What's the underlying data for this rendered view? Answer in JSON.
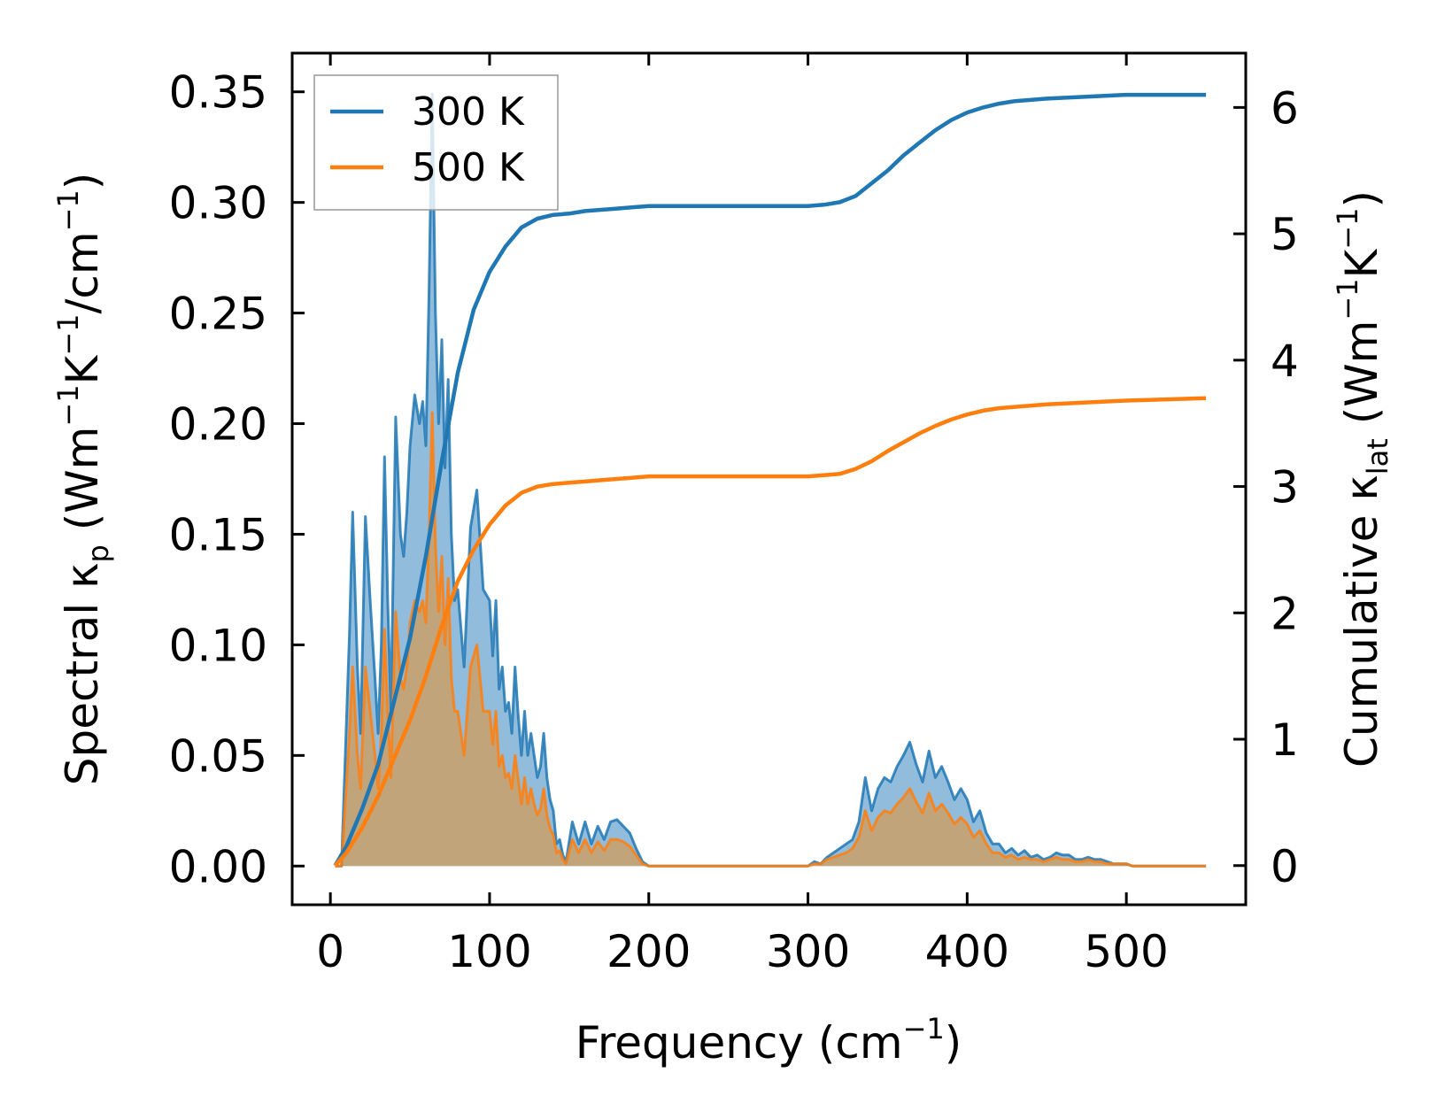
{
  "chart_data": {
    "type": "line",
    "xlabel": {
      "base": "Frequency (cm",
      "sup": "−1",
      "tail": ")"
    },
    "ylabel_left": {
      "text": "Spectral κ",
      "sub": "p",
      "unit_open": " (Wm",
      "sup1": "−1",
      "mid": "K",
      "sup2": "−1",
      "slash": "/cm",
      "sup3": "−1",
      "close": ")"
    },
    "ylabel_right": {
      "text": "Cumulative κ",
      "sub": "lat",
      "unit_open": " (Wm",
      "sup1": "−1",
      "mid": "K",
      "sup2": "−1",
      "close": ")"
    },
    "xlim": [
      -24,
      575
    ],
    "ylim_left": [
      -0.0175,
      0.3675
    ],
    "ylim_right": [
      -0.31,
      6.43
    ],
    "x_ticks": [
      0,
      100,
      200,
      300,
      400,
      500
    ],
    "x_tick_labels": [
      "0",
      "100",
      "200",
      "300",
      "400",
      "500"
    ],
    "y_left_ticks": [
      0.0,
      0.05,
      0.1,
      0.15,
      0.2,
      0.25,
      0.3,
      0.35
    ],
    "y_left_tick_labels": [
      "0.00",
      "0.05",
      "0.10",
      "0.15",
      "0.20",
      "0.25",
      "0.30",
      "0.35"
    ],
    "y_right_ticks": [
      0,
      1,
      2,
      3,
      4,
      5,
      6
    ],
    "y_right_tick_labels": [
      "0",
      "1",
      "2",
      "3",
      "4",
      "5",
      "6"
    ],
    "legend": {
      "position": "top-left",
      "entries": [
        "300 K",
        "500 K"
      ]
    },
    "colors": {
      "300 K": "#1f77b4",
      "500 K": "#ff7f0e",
      "fill_300": "#7fb0d6",
      "fill_500": "#caa06a",
      "axes": "#000000"
    },
    "spectral": {
      "axis": "left",
      "x": [
        3,
        7,
        12,
        14,
        17,
        19,
        22,
        25,
        28,
        30,
        32,
        34,
        36,
        38,
        41,
        44,
        46,
        48,
        50,
        53,
        56,
        58,
        60,
        62,
        64,
        66,
        68,
        70,
        72,
        74,
        76,
        78,
        80,
        84,
        88,
        92,
        96,
        100,
        102,
        104,
        106,
        108,
        110,
        112,
        114,
        116,
        118,
        120,
        122,
        124,
        126,
        128,
        130,
        132,
        134,
        136,
        138,
        140,
        142,
        144,
        146,
        148,
        152,
        156,
        160,
        164,
        168,
        172,
        176,
        180,
        184,
        188,
        192,
        196,
        200,
        300,
        304,
        308,
        312,
        316,
        320,
        324,
        328,
        332,
        336,
        340,
        344,
        348,
        352,
        356,
        360,
        364,
        368,
        372,
        376,
        380,
        384,
        388,
        392,
        396,
        400,
        404,
        408,
        412,
        416,
        420,
        424,
        428,
        432,
        436,
        440,
        444,
        448,
        452,
        456,
        460,
        464,
        468,
        472,
        476,
        480,
        484,
        488,
        492,
        496,
        500,
        504,
        508,
        512,
        516,
        520,
        550
      ],
      "series": [
        {
          "name": "300 K",
          "values": [
            0,
            0,
            0.105,
            0.16,
            0.09,
            0.06,
            0.158,
            0.12,
            0.085,
            0.06,
            0.1,
            0.185,
            0.12,
            0.07,
            0.203,
            0.15,
            0.14,
            0.16,
            0.19,
            0.213,
            0.2,
            0.21,
            0.19,
            0.26,
            0.349,
            0.25,
            0.2,
            0.238,
            0.18,
            0.22,
            0.15,
            0.12,
            0.125,
            0.09,
            0.153,
            0.17,
            0.125,
            0.12,
            0.095,
            0.12,
            0.08,
            0.09,
            0.07,
            0.074,
            0.06,
            0.09,
            0.068,
            0.05,
            0.07,
            0.05,
            0.06,
            0.05,
            0.04,
            0.045,
            0.06,
            0.04,
            0.03,
            0.025,
            0.01,
            0.012,
            0.005,
            0.002,
            0.02,
            0.01,
            0.02,
            0.01,
            0.018,
            0.012,
            0.02,
            0.021,
            0.018,
            0.015,
            0.008,
            0.002,
            0,
            0,
            0.002,
            0.001,
            0.004,
            0.006,
            0.008,
            0.01,
            0.012,
            0.02,
            0.04,
            0.025,
            0.035,
            0.04,
            0.038,
            0.045,
            0.05,
            0.056,
            0.046,
            0.038,
            0.052,
            0.04,
            0.045,
            0.038,
            0.03,
            0.035,
            0.03,
            0.02,
            0.025,
            0.015,
            0.01,
            0.01,
            0.006,
            0.008,
            0.005,
            0.007,
            0.004,
            0.005,
            0.003,
            0.004,
            0.006,
            0.005,
            0.005,
            0.003,
            0.003,
            0.004,
            0.003,
            0.003,
            0.002,
            0.001,
            0.001,
            0.001,
            0,
            0,
            0,
            0,
            0,
            0
          ]
        },
        {
          "name": "500 K",
          "values": [
            0,
            0,
            0.06,
            0.09,
            0.05,
            0.035,
            0.09,
            0.07,
            0.05,
            0.035,
            0.06,
            0.107,
            0.07,
            0.04,
            0.115,
            0.085,
            0.08,
            0.09,
            0.11,
            0.12,
            0.115,
            0.12,
            0.11,
            0.15,
            0.205,
            0.145,
            0.115,
            0.14,
            0.1,
            0.13,
            0.085,
            0.07,
            0.07,
            0.05,
            0.09,
            0.1,
            0.07,
            0.07,
            0.055,
            0.07,
            0.045,
            0.05,
            0.04,
            0.042,
            0.035,
            0.05,
            0.039,
            0.028,
            0.04,
            0.028,
            0.035,
            0.028,
            0.023,
            0.026,
            0.035,
            0.023,
            0.017,
            0.014,
            0.006,
            0.007,
            0.003,
            0.001,
            0.012,
            0.006,
            0.012,
            0.006,
            0.011,
            0.007,
            0.012,
            0.012,
            0.011,
            0.009,
            0.005,
            0.001,
            0,
            0,
            0.001,
            0.001,
            0.003,
            0.004,
            0.005,
            0.006,
            0.008,
            0.013,
            0.025,
            0.016,
            0.022,
            0.025,
            0.024,
            0.028,
            0.031,
            0.035,
            0.029,
            0.024,
            0.033,
            0.025,
            0.028,
            0.024,
            0.019,
            0.022,
            0.019,
            0.013,
            0.016,
            0.01,
            0.006,
            0.006,
            0.004,
            0.005,
            0.003,
            0.004,
            0.003,
            0.003,
            0.002,
            0.003,
            0.004,
            0.003,
            0.003,
            0.002,
            0.002,
            0.003,
            0.002,
            0.002,
            0.001,
            0.001,
            0.001,
            0.001,
            0,
            0,
            0,
            0,
            0,
            0
          ]
        }
      ]
    },
    "cumulative": {
      "axis": "right",
      "x": [
        3,
        10,
        20,
        30,
        40,
        50,
        60,
        70,
        80,
        90,
        100,
        110,
        120,
        130,
        140,
        150,
        160,
        170,
        180,
        190,
        200,
        250,
        300,
        310,
        320,
        330,
        340,
        350,
        360,
        370,
        380,
        390,
        400,
        410,
        420,
        430,
        450,
        500,
        550
      ],
      "series": [
        {
          "name": "300 K",
          "values": [
            0,
            0.15,
            0.45,
            0.8,
            1.3,
            1.8,
            2.45,
            3.2,
            3.9,
            4.4,
            4.7,
            4.9,
            5.05,
            5.12,
            5.15,
            5.16,
            5.18,
            5.19,
            5.2,
            5.21,
            5.22,
            5.22,
            5.22,
            5.23,
            5.25,
            5.3,
            5.4,
            5.5,
            5.62,
            5.72,
            5.82,
            5.9,
            5.96,
            6.0,
            6.03,
            6.05,
            6.07,
            6.1,
            6.1
          ]
        },
        {
          "name": "500 K",
          "values": [
            0,
            0.1,
            0.3,
            0.55,
            0.85,
            1.15,
            1.5,
            1.9,
            2.25,
            2.5,
            2.7,
            2.85,
            2.95,
            3.0,
            3.02,
            3.03,
            3.04,
            3.05,
            3.06,
            3.07,
            3.08,
            3.08,
            3.08,
            3.09,
            3.1,
            3.14,
            3.2,
            3.28,
            3.35,
            3.42,
            3.48,
            3.53,
            3.57,
            3.6,
            3.62,
            3.63,
            3.65,
            3.68,
            3.7
          ]
        }
      ]
    }
  }
}
